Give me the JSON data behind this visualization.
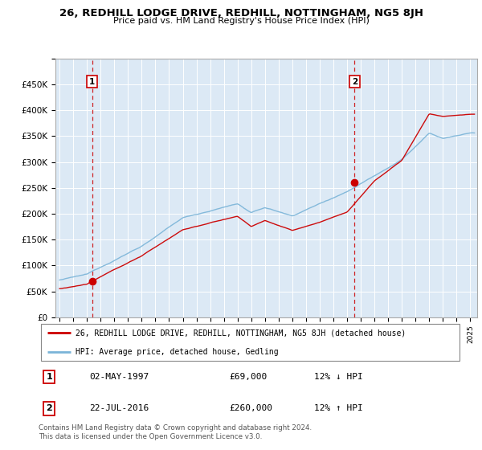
{
  "title": "26, REDHILL LODGE DRIVE, REDHILL, NOTTINGHAM, NG5 8JH",
  "subtitle": "Price paid vs. HM Land Registry's House Price Index (HPI)",
  "ylim": [
    0,
    500000
  ],
  "yticks": [
    0,
    50000,
    100000,
    150000,
    200000,
    250000,
    300000,
    350000,
    400000,
    450000,
    500000
  ],
  "ytick_labels": [
    "£0",
    "£50K",
    "£100K",
    "£150K",
    "£200K",
    "£250K",
    "£300K",
    "£350K",
    "£400K",
    "£450K",
    ""
  ],
  "xlim_start": 1994.7,
  "xlim_end": 2025.5,
  "bg_color": "#dce9f5",
  "grid_color": "#ffffff",
  "sale1_year": 1997.37,
  "sale1_price": 69000,
  "sale2_year": 2016.55,
  "sale2_price": 260000,
  "legend_line1": "26, REDHILL LODGE DRIVE, REDHILL, NOTTINGHAM, NG5 8JH (detached house)",
  "legend_line2": "HPI: Average price, detached house, Gedling",
  "table_row1": [
    "1",
    "02-MAY-1997",
    "£69,000",
    "12% ↓ HPI"
  ],
  "table_row2": [
    "2",
    "22-JUL-2016",
    "£260,000",
    "12% ↑ HPI"
  ],
  "footer": "Contains HM Land Registry data © Crown copyright and database right 2024.\nThis data is licensed under the Open Government Licence v3.0.",
  "hpi_color": "#7ab4d8",
  "sale_color": "#cc0000",
  "dashed_color": "#cc0000"
}
